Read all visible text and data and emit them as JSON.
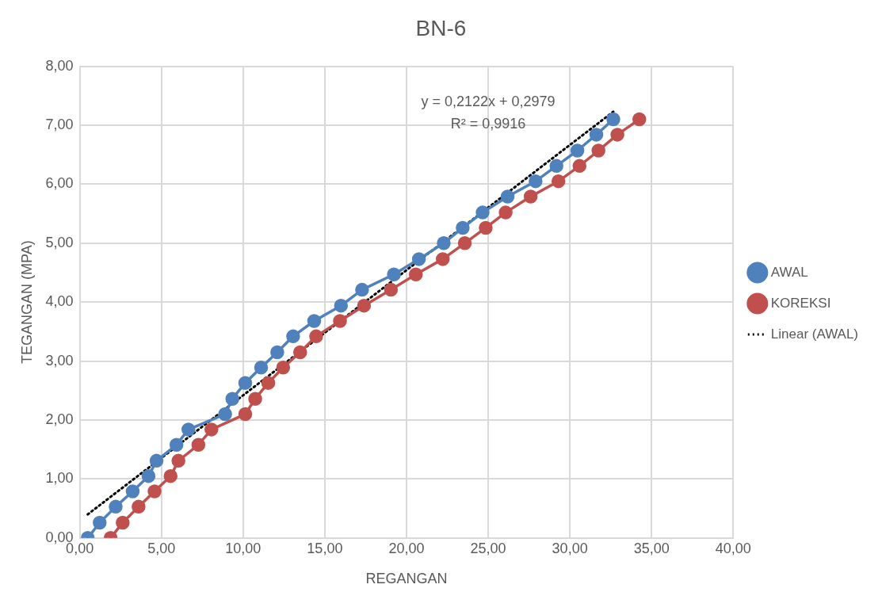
{
  "chart_data": {
    "type": "line",
    "title": "BN-6",
    "xlabel": "REGANGAN",
    "ylabel": "TEGANGAN (MPA)",
    "xlim": [
      0,
      40
    ],
    "xticks": [
      {
        "value": 0,
        "label": "0,00"
      },
      {
        "value": 5,
        "label": "5,00"
      },
      {
        "value": 10,
        "label": "10,00"
      },
      {
        "value": 15,
        "label": "15,00"
      },
      {
        "value": 20,
        "label": "20,00"
      },
      {
        "value": 25,
        "label": "25,00"
      },
      {
        "value": 30,
        "label": "30,00"
      },
      {
        "value": 35,
        "label": "35,00"
      },
      {
        "value": 40,
        "label": "40,00"
      }
    ],
    "ylim": [
      0,
      8
    ],
    "yticks": [
      {
        "value": 0,
        "label": "0,00"
      },
      {
        "value": 1,
        "label": "1,00"
      },
      {
        "value": 2,
        "label": "2,00"
      },
      {
        "value": 3,
        "label": "3,00"
      },
      {
        "value": 4,
        "label": "4,00"
      },
      {
        "value": 5,
        "label": "5,00"
      },
      {
        "value": 6,
        "label": "6,00"
      },
      {
        "value": 7,
        "label": "7,00"
      },
      {
        "value": 8,
        "label": "8,00"
      }
    ],
    "grid": true,
    "legend": "right",
    "marker": "circle",
    "series": [
      {
        "name": "AWAL",
        "color": "#4f81bd",
        "x": [
          0.49,
          1.22,
          2.2,
          3.24,
          4.21,
          4.7,
          5.92,
          6.65,
          8.9,
          9.34,
          10.13,
          11.1,
          12.09,
          13.06,
          14.35,
          15.99,
          17.28,
          19.23,
          20.76,
          22.28,
          23.44,
          24.66,
          26.19,
          27.9,
          29.18,
          30.46,
          31.62,
          32.66
        ],
        "values": [
          0,
          0.26,
          0.53,
          0.79,
          1.05,
          1.31,
          1.58,
          1.84,
          2.1,
          2.36,
          2.63,
          2.89,
          3.15,
          3.42,
          3.68,
          3.94,
          4.21,
          4.47,
          4.73,
          5.0,
          5.26,
          5.52,
          5.79,
          6.05,
          6.31,
          6.57,
          6.84,
          7.1
        ]
      },
      {
        "name": "KOREKSI",
        "color": "#c0504d",
        "x": [
          1.89,
          2.63,
          3.6,
          4.58,
          5.56,
          6.04,
          7.26,
          8.06,
          10.13,
          10.74,
          11.54,
          12.45,
          13.49,
          14.47,
          15.93,
          17.4,
          19.05,
          20.57,
          22.22,
          23.57,
          24.85,
          26.07,
          27.6,
          29.3,
          30.59,
          31.75,
          32.91,
          34.25
        ],
        "values": [
          0,
          0.26,
          0.53,
          0.79,
          1.05,
          1.31,
          1.58,
          1.84,
          2.1,
          2.36,
          2.63,
          2.89,
          3.15,
          3.42,
          3.68,
          3.94,
          4.21,
          4.47,
          4.73,
          5.0,
          5.26,
          5.52,
          5.79,
          6.05,
          6.31,
          6.57,
          6.84,
          7.1
        ]
      },
      {
        "name": "Linear (AWAL)",
        "color": "#000000",
        "type": "line",
        "marker": "none",
        "line_style": "dotted",
        "x": [
          0.49,
          32.66
        ],
        "values": [
          0.4,
          7.23
        ]
      }
    ],
    "annotations": [
      "y = 0,2122x + 0,2979",
      "R² = 0,9916"
    ]
  }
}
